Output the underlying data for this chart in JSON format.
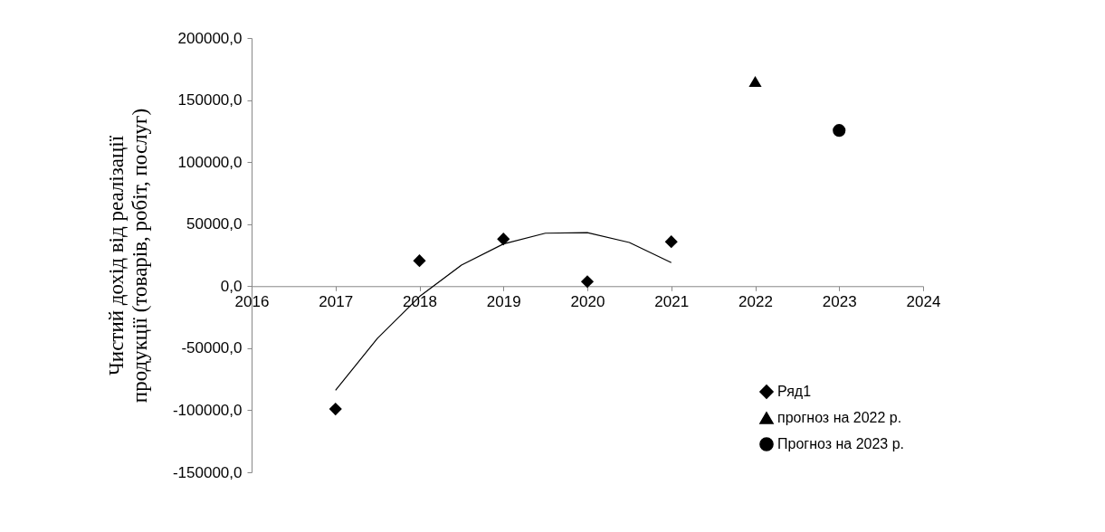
{
  "chart_data": {
    "type": "scatter",
    "ylabel": "Чистий дохід від реалізації\nпродукції (товарів, робіт, послуг)",
    "xlim": [
      2016,
      2024
    ],
    "xticks": [
      2016,
      2017,
      2018,
      2019,
      2020,
      2021,
      2022,
      2023,
      2024
    ],
    "ylim": [
      -150000,
      200000
    ],
    "yticks": [
      {
        "value": -150000,
        "label": "-150000,0"
      },
      {
        "value": -100000,
        "label": "-100000,0"
      },
      {
        "value": -50000,
        "label": "-50000,0"
      },
      {
        "value": 0,
        "label": "0,0"
      },
      {
        "value": 50000,
        "label": "50000,0"
      },
      {
        "value": 100000,
        "label": "100000,0"
      },
      {
        "value": 150000,
        "label": "150000,0"
      },
      {
        "value": 200000,
        "label": "200000,0"
      }
    ],
    "grid": false,
    "legend": "bottom right",
    "series": [
      {
        "name": "Ряд1",
        "marker": "diamond",
        "color": "#000000",
        "x": [
          2017,
          2018,
          2019,
          2020,
          2021
        ],
        "values": [
          -99000,
          20500,
          38000,
          3700,
          35800
        ]
      },
      {
        "name": "прогноз на 2022 р.",
        "marker": "triangle",
        "color": "#000000",
        "x": [
          2022
        ],
        "values": [
          165000
        ]
      },
      {
        "name": "Прогноз на 2023 р.",
        "marker": "circle",
        "color": "#000000",
        "x": [
          2023
        ],
        "values": [
          125500
        ]
      },
      {
        "type": "line",
        "marker": "none",
        "color": "#000000",
        "x": [
          2017,
          2017.5,
          2018,
          2018.5,
          2019,
          2019.5,
          2020,
          2020.5,
          2021
        ],
        "values": [
          -84000,
          -42000,
          -8400,
          17000,
          34000,
          42700,
          43100,
          35200,
          19000
        ]
      }
    ]
  }
}
